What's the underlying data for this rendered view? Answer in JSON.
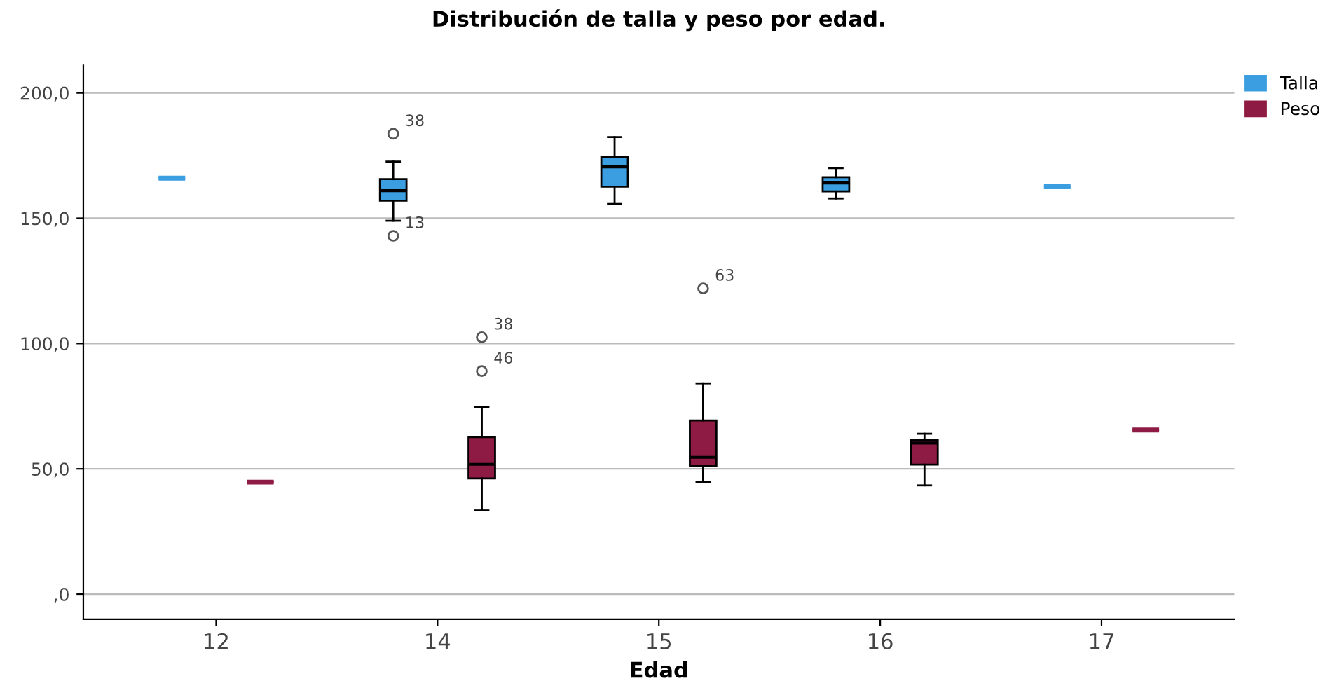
{
  "chart_data": {
    "type": "box",
    "title": "Distribución de talla y peso por edad.",
    "xlabel": "Edad",
    "categories": [
      "12",
      "14",
      "15",
      "16",
      "17"
    ],
    "series": [
      {
        "name": "Talla",
        "color": "#3a9ee0",
        "boxes": [
          {
            "low": 166,
            "q1": 166,
            "median": 166,
            "q3": 166,
            "high": 166
          },
          {
            "low": 149,
            "q1": 157,
            "median": 161,
            "q3": 165.6,
            "high": 172.6,
            "outliers": [
              183.7,
              143
            ]
          },
          {
            "low": 155.7,
            "q1": 162.6,
            "median": 170.5,
            "q3": 174.6,
            "high": 182.4
          },
          {
            "low": 157.9,
            "q1": 160.7,
            "median": 164.1,
            "q3": 166.4,
            "high": 170
          },
          {
            "low": 162.6,
            "q1": 162.6,
            "median": 162.6,
            "q3": 162.6,
            "high": 162.6
          }
        ]
      },
      {
        "name": "Peso",
        "color": "#8e1b43",
        "boxes": [
          {
            "low": 44.7,
            "q1": 44.7,
            "median": 44.7,
            "q3": 44.7,
            "high": 44.7
          },
          {
            "low": 33.4,
            "q1": 46.2,
            "median": 51.8,
            "q3": 62.7,
            "high": 74.7,
            "outliers": [
              102.5,
              89
            ]
          },
          {
            "low": 44.7,
            "q1": 51.3,
            "median": 54.6,
            "q3": 69.3,
            "high": 84.1,
            "outliers": [
              122
            ]
          },
          {
            "low": 43.4,
            "q1": 51.7,
            "median": 60.3,
            "q3": 61.6,
            "high": 64
          },
          {
            "low": 65.5,
            "q1": 65.5,
            "median": 65.5,
            "q3": 65.5,
            "high": 65.5
          }
        ]
      }
    ],
    "annotations": [
      "38",
      "13",
      "38",
      "46",
      "63"
    ],
    "ylim": [
      -10,
      211
    ],
    "yticks": [
      {
        "value": 0,
        "label": ",0"
      },
      {
        "value": 50,
        "label": "50,0"
      },
      {
        "value": 100,
        "label": "100,0"
      },
      {
        "value": 150,
        "label": "150,0"
      },
      {
        "value": 200,
        "label": "200,0"
      }
    ],
    "grid": "y",
    "legend": "top right"
  }
}
